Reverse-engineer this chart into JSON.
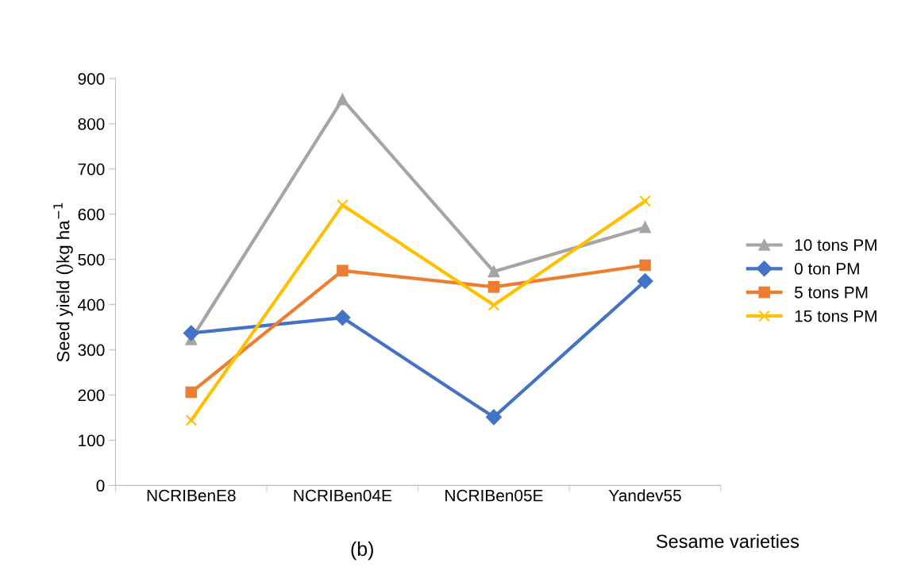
{
  "chart_data": {
    "type": "line",
    "ylabel": "Seed yield ()kg ha$^{−1}$",
    "xlabel": "Sesame varieties",
    "annotations": [
      "(b)"
    ],
    "categories": [
      "NCRIBenE8",
      "NCRIBen04E",
      "NCRIBen05E",
      "Yandev55"
    ],
    "series": [
      {
        "name": "10 tons PM",
        "color": "#a5a5a5",
        "marker": "triangle",
        "values": [
          323,
          854,
          473,
          571
        ]
      },
      {
        "name": "0 ton PM",
        "color": "#4472c4",
        "marker": "diamond",
        "values": [
          337,
          371,
          151,
          452
        ]
      },
      {
        "name": "5 tons PM",
        "color": "#ed7d31",
        "marker": "square",
        "values": [
          206,
          475,
          439,
          487
        ]
      },
      {
        "name": "15 tons PM",
        "color": "#ffc000",
        "marker": "cross",
        "values": [
          144,
          620,
          399,
          629
        ]
      }
    ],
    "ylim": [
      0,
      900
    ],
    "yticks": [
      0,
      100,
      200,
      300,
      400,
      500,
      600,
      700,
      800,
      900
    ],
    "grid": false,
    "legend": "right"
  }
}
